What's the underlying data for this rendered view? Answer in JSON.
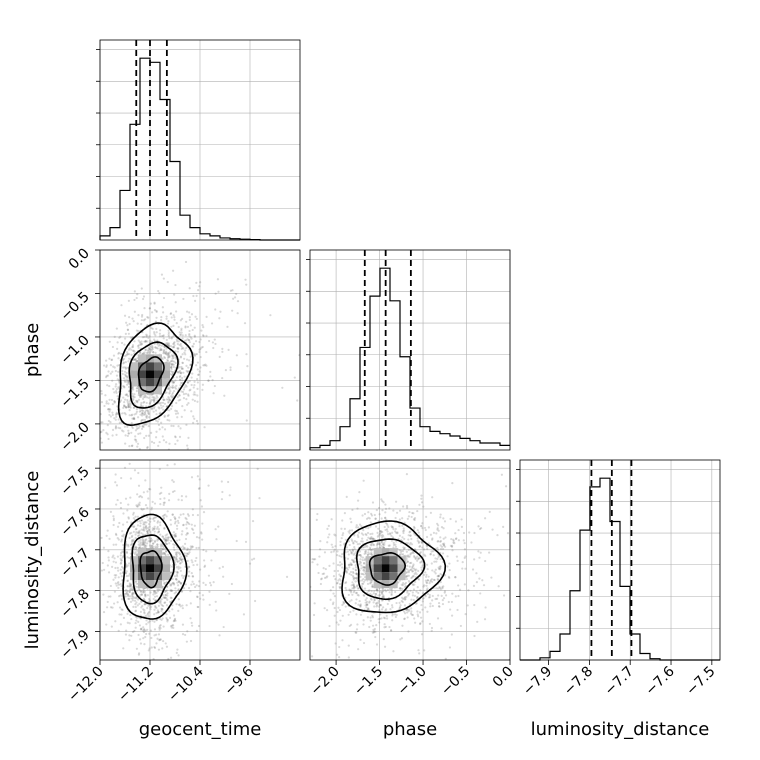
{
  "chart_data": {
    "type": "corner",
    "parameters": [
      {
        "name": "geocent_time",
        "label": "geocent_time",
        "range": [
          -12.0,
          -8.8
        ],
        "ticks": [
          -12.0,
          -11.2,
          -10.4,
          -9.6
        ],
        "tick_labels": [
          "−12.0",
          "−11.2",
          "−10.4",
          "−9.6"
        ],
        "median": -11.2,
        "quantiles": [
          -11.42,
          -11.2,
          -10.93
        ]
      },
      {
        "name": "phase",
        "label": "phase",
        "range": [
          -2.3,
          0.0
        ],
        "ticks": [
          -2.0,
          -1.5,
          -1.0,
          -0.5,
          0.0
        ],
        "tick_labels": [
          "−2.0",
          "−1.5",
          "−1.0",
          "−0.5",
          "0.0"
        ],
        "median": -1.43,
        "quantiles": [
          -1.67,
          -1.43,
          -1.14
        ]
      },
      {
        "name": "luminosity_distance",
        "label": "luminosity_distance",
        "range": [
          -7.97,
          -7.48
        ],
        "ticks": [
          -7.9,
          -7.8,
          -7.7,
          -7.6,
          -7.5
        ],
        "tick_labels": [
          "−7.9",
          "−7.8",
          "−7.7",
          "−7.6",
          "−7.5"
        ],
        "median": -7.745,
        "quantiles": [
          -7.795,
          -7.745,
          -7.697
        ]
      }
    ],
    "histograms": [
      {
        "param": "geocent_time",
        "bin_start": -12.0,
        "bin_width": 0.16,
        "counts": [
          1,
          3,
          12,
          28,
          44,
          43,
          34,
          19,
          6,
          3,
          1.5,
          1,
          0.5,
          0.3,
          0.2,
          0.1,
          0,
          0,
          0,
          0
        ]
      },
      {
        "param": "phase",
        "bin_start": -2.3,
        "bin_width": 0.115,
        "counts": [
          0.5,
          1,
          2,
          5,
          11,
          22,
          33,
          39,
          32,
          20,
          9,
          5,
          4,
          3.5,
          3,
          2.5,
          2,
          1.5,
          1.5,
          1
        ]
      },
      {
        "param": "luminosity_distance",
        "bin_start": -7.97,
        "bin_width": 0.0245,
        "counts": [
          0,
          0,
          0.5,
          2,
          6,
          16,
          30,
          40,
          42,
          32,
          17,
          6,
          1.5,
          0.3,
          0,
          0,
          0,
          0,
          0,
          0
        ]
      }
    ],
    "joint": [
      {
        "x": "geocent_time",
        "y": "phase",
        "center": [
          -11.2,
          -1.43
        ],
        "sigma": [
          0.35,
          0.36
        ],
        "rho": 0.3
      },
      {
        "x": "geocent_time",
        "y": "luminosity_distance",
        "center": [
          -11.2,
          -7.745
        ],
        "sigma": [
          0.3,
          0.08
        ],
        "rho": 0.0
      },
      {
        "x": "phase",
        "y": "luminosity_distance",
        "center": [
          -1.43,
          -7.745
        ],
        "sigma": [
          0.35,
          0.07
        ],
        "rho": 0.05
      }
    ],
    "grid": true
  }
}
